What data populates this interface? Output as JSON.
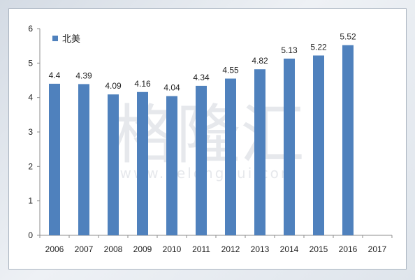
{
  "chart_data": {
    "type": "bar",
    "categories": [
      "2006",
      "2007",
      "2008",
      "2009",
      "2010",
      "2011",
      "2012",
      "2013",
      "2014",
      "2015",
      "2016",
      "2017"
    ],
    "series": [
      {
        "name": "北美",
        "values": [
          4.4,
          4.39,
          4.09,
          4.16,
          4.04,
          4.34,
          4.55,
          4.82,
          5.13,
          5.22,
          5.52,
          null
        ],
        "color": "#4f81bd"
      }
    ],
    "data_labels": [
      "4.4",
      "4.39",
      "4.09",
      "4.16",
      "4.04",
      "4.34",
      "4.55",
      "4.82",
      "5.13",
      "5.22",
      "5.52",
      ""
    ],
    "ylim": [
      0,
      6
    ],
    "yticks": [
      0,
      1,
      2,
      3,
      4,
      5,
      6
    ],
    "grid": false,
    "legend": "top-left",
    "title": "",
    "xlabel": "",
    "ylabel": ""
  },
  "watermark": {
    "main": "格隆汇",
    "url": "www.gelonghui.com"
  }
}
